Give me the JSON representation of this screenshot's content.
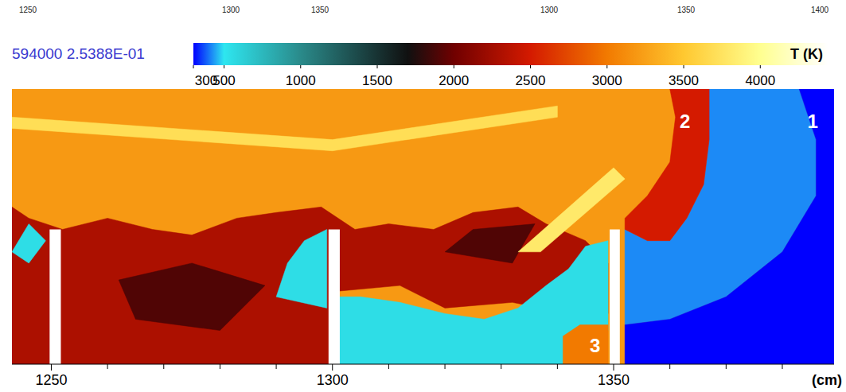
{
  "chart_data": {
    "type": "field",
    "top_labels": [
      "1250",
      "1300",
      "1350",
      "1300",
      "1350",
      "1400"
    ],
    "info": "594000  2.5388E-01",
    "x_label": "(cm)",
    "xlim": [
      1243,
      1389.2
    ],
    "ylim": [
      0,
      49
    ],
    "xticks": [
      1250,
      1300,
      1350
    ],
    "minor_xticks": [
      1260,
      1270,
      1280,
      1290,
      1310,
      1320,
      1330,
      1340,
      1360,
      1370,
      1380
    ],
    "tick_labels": "x",
    "colorbar": {
      "label": "T (K)",
      "range": [
        300,
        4440
      ],
      "ticks": [
        300,
        500,
        1000,
        1500,
        2000,
        2500,
        3000,
        3500,
        4000
      ],
      "colormap": [
        {
          "value": 300,
          "color": "#0000ff"
        },
        {
          "value": 500,
          "color": "#2ee6f0"
        },
        {
          "value": 1000,
          "color": "#2a8a8a"
        },
        {
          "value": 1700,
          "color": "#101010"
        },
        {
          "value": 2000,
          "color": "#700000"
        },
        {
          "value": 2500,
          "color": "#d41a00"
        },
        {
          "value": 3000,
          "color": "#f27a00"
        },
        {
          "value": 3500,
          "color": "#ffc830"
        },
        {
          "value": 4000,
          "color": "#ffff90"
        },
        {
          "value": 4440,
          "color": "#ffffff"
        }
      ]
    },
    "regions": [
      {
        "T": 3200,
        "points": [
          [
            1243,
            0
          ],
          [
            1389.2,
            0
          ],
          [
            1389.2,
            49
          ],
          [
            1243,
            49
          ]
        ]
      },
      {
        "T": 3700,
        "points": [
          [
            1243,
            42
          ],
          [
            1300,
            38
          ],
          [
            1340,
            44
          ],
          [
            1340,
            46
          ],
          [
            1300,
            40
          ],
          [
            1243,
            44
          ]
        ]
      },
      {
        "T": 2300,
        "points": [
          [
            1243,
            0
          ],
          [
            1301,
            0
          ],
          [
            1301,
            13
          ],
          [
            1312,
            14
          ],
          [
            1320,
            10
          ],
          [
            1332,
            11
          ],
          [
            1342,
            9
          ],
          [
            1349,
            9
          ],
          [
            1349,
            18
          ],
          [
            1345,
            22
          ],
          [
            1338,
            25
          ],
          [
            1333,
            28
          ],
          [
            1325,
            27
          ],
          [
            1318,
            24
          ],
          [
            1310,
            25
          ],
          [
            1304,
            24
          ],
          [
            1298,
            28
          ],
          [
            1290,
            27
          ],
          [
            1283,
            26
          ],
          [
            1275,
            23
          ],
          [
            1268,
            24
          ],
          [
            1260,
            26
          ],
          [
            1252,
            24
          ],
          [
            1246,
            26
          ],
          [
            1243,
            28
          ]
        ]
      },
      {
        "T": 1900,
        "points": [
          [
            1265,
            8
          ],
          [
            1280,
            6
          ],
          [
            1288,
            14
          ],
          [
            1275,
            18
          ],
          [
            1262,
            15
          ]
        ]
      },
      {
        "T": 1900,
        "points": [
          [
            1320,
            20
          ],
          [
            1332,
            18
          ],
          [
            1336,
            25
          ],
          [
            1325,
            24
          ]
        ]
      },
      {
        "T": 3800,
        "points": [
          [
            1333,
            20
          ],
          [
            1337,
            20
          ],
          [
            1352,
            33
          ],
          [
            1350,
            35
          ]
        ]
      },
      {
        "T": 550,
        "points": [
          [
            1301,
            0
          ],
          [
            1343,
            0
          ],
          [
            1343,
            6
          ],
          [
            1349,
            6
          ],
          [
            1349,
            22
          ],
          [
            1345,
            21
          ],
          [
            1342,
            17
          ],
          [
            1338,
            14
          ],
          [
            1333,
            10
          ],
          [
            1327,
            8
          ],
          [
            1320,
            9
          ],
          [
            1312,
            11
          ],
          [
            1305,
            12
          ],
          [
            1301,
            12
          ]
        ]
      },
      {
        "T": 550,
        "points": [
          [
            1290,
            12
          ],
          [
            1299,
            10
          ],
          [
            1299,
            24
          ],
          [
            1295,
            22
          ],
          [
            1292,
            18
          ]
        ]
      },
      {
        "T": 550,
        "points": [
          [
            1243,
            20
          ],
          [
            1246,
            18
          ],
          [
            1249,
            22
          ],
          [
            1246,
            25
          ]
        ]
      },
      {
        "T": 3000,
        "points": [
          [
            1341,
            0
          ],
          [
            1349,
            0
          ],
          [
            1349,
            7
          ],
          [
            1344,
            7
          ],
          [
            1341,
            5
          ]
        ]
      },
      {
        "T": 420,
        "points": [
          [
            1365,
            49
          ],
          [
            1383,
            49
          ],
          [
            1386,
            40
          ],
          [
            1386,
            30
          ],
          [
            1380,
            20
          ],
          [
            1370,
            12
          ],
          [
            1360,
            8
          ],
          [
            1352,
            7
          ],
          [
            1352,
            24
          ],
          [
            1356,
            22
          ],
          [
            1360,
            22
          ],
          [
            1363,
            26
          ],
          [
            1366,
            32
          ],
          [
            1367,
            40
          ]
        ]
      },
      {
        "T": 300,
        "points": [
          [
            1383,
            49
          ],
          [
            1389.2,
            49
          ],
          [
            1389.2,
            0
          ],
          [
            1352,
            0
          ],
          [
            1352,
            7
          ],
          [
            1360,
            8
          ],
          [
            1370,
            12
          ],
          [
            1380,
            20
          ],
          [
            1386,
            30
          ],
          [
            1386,
            40
          ]
        ]
      },
      {
        "T": 2500,
        "points": [
          [
            1360,
            49
          ],
          [
            1367,
            49
          ],
          [
            1367,
            40
          ],
          [
            1366,
            32
          ],
          [
            1363,
            26
          ],
          [
            1360,
            22
          ],
          [
            1356,
            22
          ],
          [
            1352,
            24
          ],
          [
            1352,
            26
          ],
          [
            1356,
            30
          ],
          [
            1360,
            36
          ],
          [
            1361,
            44
          ]
        ]
      }
    ],
    "obstacles": [
      {
        "x0": 1249.7,
        "x1": 1251.7,
        "top": 24
      },
      {
        "x0": 1299.3,
        "x1": 1301.3,
        "top": 24
      },
      {
        "x0": 1349.3,
        "x1": 1351.1,
        "top": 24
      }
    ],
    "annotations": [
      {
        "text": "1",
        "x": 1385.4,
        "y": 42.9
      },
      {
        "text": "2",
        "x": 1362.7,
        "y": 42.9
      },
      {
        "text": "3",
        "x": 1346.7,
        "y": 3.0
      }
    ]
  }
}
